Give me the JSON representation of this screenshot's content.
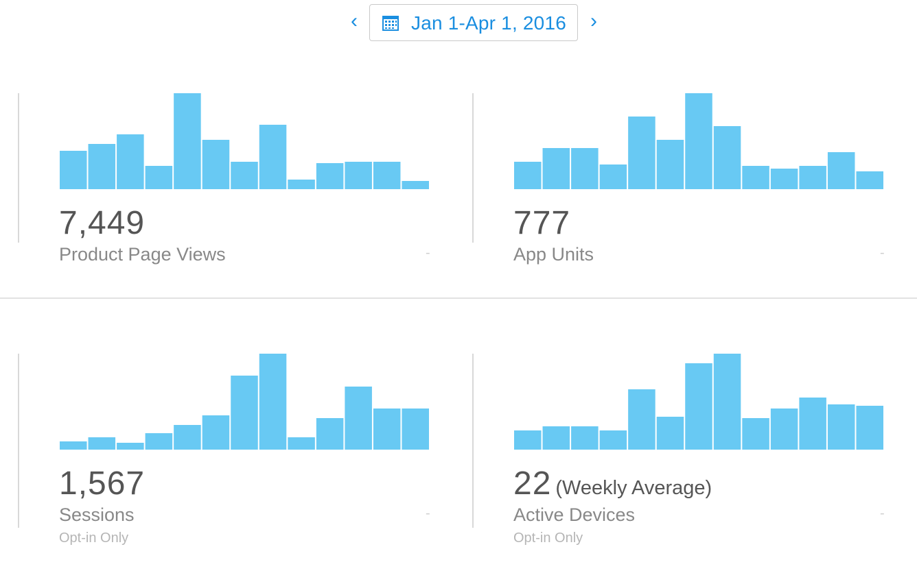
{
  "date_range": {
    "label": "Jan 1-Apr 1, 2016",
    "prev_icon": "chevron-left-icon",
    "next_icon": "chevron-right-icon",
    "calendar_icon": "calendar-icon",
    "accent_color": "#1a8ee0"
  },
  "bar_color": "#68c9f3",
  "metrics": [
    {
      "value": "7,449",
      "subtitle": "",
      "label": "Product Page Views",
      "note": "",
      "trend": "-",
      "chart_data": {
        "type": "bar",
        "values": [
          56,
          66,
          80,
          34,
          140,
          72,
          40,
          94,
          14,
          38,
          40,
          40,
          12
        ],
        "ylim": [
          0,
          140
        ]
      }
    },
    {
      "value": "777",
      "subtitle": "",
      "label": "App Units",
      "note": "",
      "trend": "-",
      "chart_data": {
        "type": "bar",
        "values": [
          40,
          60,
          60,
          36,
          106,
          72,
          140,
          92,
          34,
          30,
          34,
          54,
          26
        ],
        "ylim": [
          0,
          140
        ]
      }
    },
    {
      "value": "1,567",
      "subtitle": "",
      "label": "Sessions",
      "note": "Opt-in Only",
      "trend": "-",
      "chart_data": {
        "type": "bar",
        "values": [
          12,
          18,
          10,
          24,
          36,
          50,
          108,
          140,
          18,
          46,
          92,
          60,
          60
        ],
        "ylim": [
          0,
          140
        ]
      }
    },
    {
      "value": "22",
      "subtitle": "(Weekly Average)",
      "label": "Active Devices",
      "note": "Opt-in Only",
      "trend": "-",
      "chart_data": {
        "type": "bar",
        "values": [
          28,
          34,
          34,
          28,
          88,
          48,
          126,
          140,
          46,
          60,
          76,
          66,
          64
        ],
        "ylim": [
          0,
          140
        ]
      }
    }
  ]
}
